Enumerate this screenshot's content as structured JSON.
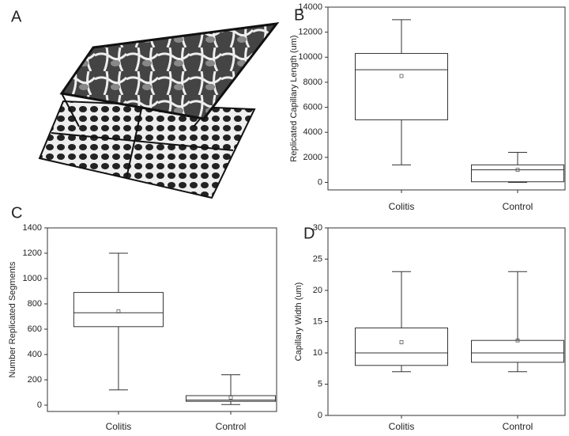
{
  "panel_a": {
    "label": "A"
  },
  "chart_data": [
    {
      "type": "box",
      "panel": "B",
      "y_label": "Replicated Capillary Length (um)",
      "categories": [
        "Colitis",
        "Control"
      ],
      "boxes": [
        {
          "whisker_low": 1400,
          "q1": 5000,
          "median": 9000,
          "q3": 10300,
          "whisker_high": 13000,
          "mean": 8500
        },
        {
          "whisker_low": 0,
          "q1": 50,
          "median": 1000,
          "q3": 1400,
          "whisker_high": 2400,
          "mean": 1000
        }
      ],
      "ylim": [
        -600,
        14000
      ],
      "yticks": [
        0,
        2000,
        4000,
        6000,
        8000,
        10000,
        12000,
        14000
      ]
    },
    {
      "type": "box",
      "panel": "C",
      "y_label": "Number Replicated Segments",
      "categories": [
        "Colitis",
        "Control"
      ],
      "boxes": [
        {
          "whisker_low": 120,
          "q1": 620,
          "median": 730,
          "q3": 890,
          "whisker_high": 1200,
          "mean": 740
        },
        {
          "whisker_low": 5,
          "q1": 30,
          "median": 40,
          "q3": 75,
          "whisker_high": 240,
          "mean": 60
        }
      ],
      "ylim": [
        -50,
        1400
      ],
      "yticks": [
        0,
        200,
        400,
        600,
        800,
        1000,
        1200,
        1400
      ]
    },
    {
      "type": "box",
      "panel": "D",
      "y_label": "Capillary Width (um)",
      "categories": [
        "Colitis",
        "Control"
      ],
      "boxes": [
        {
          "whisker_low": 7,
          "q1": 8,
          "median": 10,
          "q3": 14,
          "whisker_high": 23,
          "mean": 11.7
        },
        {
          "whisker_low": 7,
          "q1": 8.5,
          "median": 10,
          "q3": 12,
          "whisker_high": 23,
          "mean": 12
        }
      ],
      "ylim": [
        0,
        30
      ],
      "yticks": [
        0,
        5,
        10,
        15,
        20,
        25,
        30
      ]
    }
  ]
}
